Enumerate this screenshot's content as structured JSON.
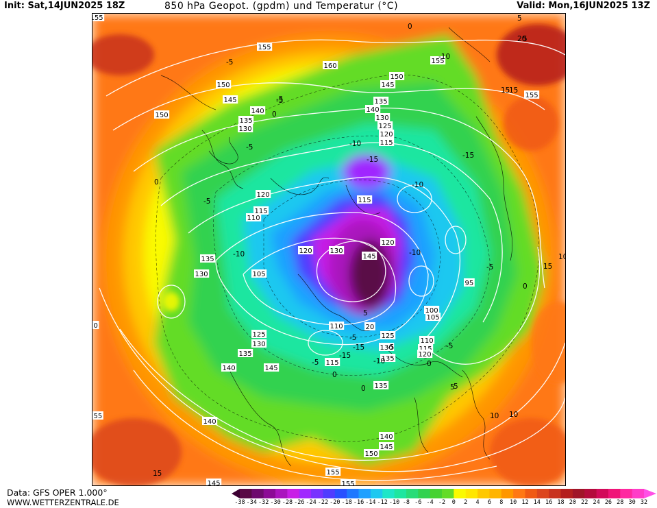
{
  "header": {
    "init": "Init: Sat,14JUN2025 18Z",
    "title": "850 hPa Geopot. (gpdm) und Temperatur (°C)",
    "valid": "Valid: Mon,16JUN2025 13Z"
  },
  "footer": {
    "data_source": "Data: GFS OPER 1.000°",
    "website": "WWW.WETTERZENTRALE.DE"
  },
  "colorbar": {
    "labels": [
      "-38",
      "-34",
      "-32",
      "-30",
      "-28",
      "-26",
      "-24",
      "-22",
      "-20",
      "-18",
      "-16",
      "-14",
      "-12",
      "-10",
      "-8",
      "-6",
      "-4",
      "-2",
      "0",
      "2",
      "4",
      "6",
      "8",
      "10",
      "12",
      "14",
      "16",
      "18",
      "20",
      "22",
      "24",
      "26",
      "28",
      "30",
      "32"
    ],
    "colors": [
      "#5a0a46",
      "#6e0a6e",
      "#8c0a96",
      "#aa14be",
      "#c81ee6",
      "#a028ff",
      "#7832ff",
      "#503cff",
      "#2850ff",
      "#1e78ff",
      "#1ea0ff",
      "#1ec8f0",
      "#1ee6c8",
      "#1ee6a0",
      "#28dc78",
      "#32d250",
      "#46d232",
      "#64dc28",
      "#fafa00",
      "#ffe600",
      "#ffc800",
      "#ffb400",
      "#ff9600",
      "#ff7814",
      "#f05a14",
      "#dc461e",
      "#c8321e",
      "#b41e1e",
      "#a01428",
      "#b40a3c",
      "#d20a5a",
      "#f01478",
      "#ff28a0",
      "#ff3cc8"
    ]
  },
  "map": {
    "geopotential_labels": [
      {
        "text": "155"
      },
      {
        "text": "155"
      },
      {
        "text": "155"
      },
      {
        "text": "155"
      },
      {
        "text": "160"
      },
      {
        "text": "150"
      },
      {
        "text": "150"
      },
      {
        "text": "150"
      },
      {
        "text": "145"
      },
      {
        "text": "145"
      },
      {
        "text": "140"
      },
      {
        "text": "135"
      },
      {
        "text": "130"
      },
      {
        "text": "125"
      },
      {
        "text": "120"
      },
      {
        "text": "115"
      },
      {
        "text": "140"
      },
      {
        "text": "135"
      },
      {
        "text": "130"
      },
      {
        "text": "120"
      },
      {
        "text": "115"
      },
      {
        "text": "110"
      },
      {
        "text": "115"
      },
      {
        "text": "120"
      },
      {
        "text": "130"
      },
      {
        "text": "145"
      },
      {
        "text": "120"
      },
      {
        "text": "135"
      },
      {
        "text": "130"
      },
      {
        "text": "105"
      },
      {
        "text": "95"
      },
      {
        "text": "100"
      },
      {
        "text": "105"
      },
      {
        "text": "110"
      },
      {
        "text": "110"
      },
      {
        "text": "115"
      },
      {
        "text": "120"
      },
      {
        "text": "20"
      },
      {
        "text": "125"
      },
      {
        "text": "130"
      },
      {
        "text": "135"
      },
      {
        "text": "115"
      },
      {
        "text": "125"
      },
      {
        "text": "130"
      },
      {
        "text": "135"
      },
      {
        "text": "140"
      },
      {
        "text": "145"
      },
      {
        "text": "135"
      },
      {
        "text": "140"
      },
      {
        "text": "145"
      },
      {
        "text": "150"
      },
      {
        "text": "155"
      },
      {
        "text": "155"
      },
      {
        "text": "140"
      },
      {
        "text": "145"
      },
      {
        "text": "55"
      },
      {
        "text": "0"
      }
    ],
    "temperature_labels": [
      {
        "text": "-5"
      },
      {
        "text": "0"
      },
      {
        "text": "5"
      },
      {
        "text": "-10"
      },
      {
        "text": "-15"
      },
      {
        "text": "-10"
      },
      {
        "text": "-5"
      },
      {
        "text": "0"
      },
      {
        "text": "-5"
      },
      {
        "text": "0"
      },
      {
        "text": "-15"
      },
      {
        "text": "-10"
      },
      {
        "text": "-5"
      },
      {
        "text": "-10"
      },
      {
        "text": "-15"
      },
      {
        "text": "-5"
      },
      {
        "text": "-10"
      },
      {
        "text": "-5"
      },
      {
        "text": "-15"
      },
      {
        "text": "-10"
      },
      {
        "text": "-5"
      },
      {
        "text": "-5"
      },
      {
        "text": "0"
      },
      {
        "text": "5"
      },
      {
        "text": "10"
      },
      {
        "text": "0"
      },
      {
        "text": "5"
      },
      {
        "text": "10"
      },
      {
        "text": "10"
      },
      {
        "text": "15"
      },
      {
        "text": "5"
      },
      {
        "text": "-5"
      },
      {
        "text": "5"
      },
      {
        "text": "0"
      },
      {
        "text": "15"
      },
      {
        "text": "20"
      },
      {
        "text": "15"
      },
      {
        "text": "15"
      },
      {
        "text": "0"
      },
      {
        "text": "-5"
      }
    ]
  }
}
